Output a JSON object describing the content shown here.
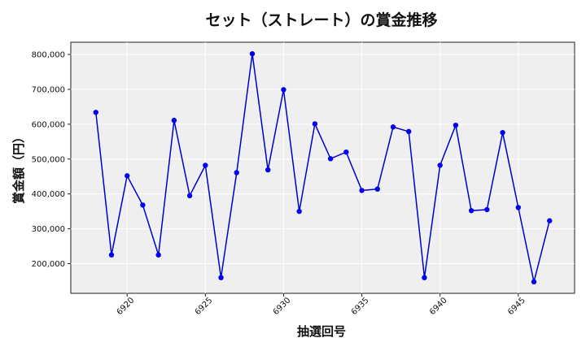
{
  "chart_data": {
    "type": "line",
    "title": "セット（ストレート）の賞金推移",
    "xlabel": "抽選回号",
    "ylabel": "賞金額（円）",
    "xlim": [
      6916.4,
      6948.6
    ],
    "ylim": [
      115000,
      835000
    ],
    "x_ticks": [
      6920,
      6925,
      6930,
      6935,
      6940,
      6945
    ],
    "y_ticks": [
      200000,
      300000,
      400000,
      500000,
      600000,
      700000,
      800000
    ],
    "y_tick_labels": [
      "200,000",
      "300,000",
      "400,000",
      "500,000",
      "600,000",
      "700,000",
      "800,000"
    ],
    "grid": true,
    "line_color": "#0000cc",
    "marker_color": "#0000ee",
    "plot_background": "#efefef",
    "series": [
      {
        "x": [
          6918,
          6919,
          6920,
          6921,
          6922,
          6923,
          6924,
          6925,
          6926,
          6927,
          6928,
          6929,
          6930,
          6931,
          6932,
          6933,
          6934,
          6935,
          6936,
          6937,
          6938,
          6939,
          6940,
          6941,
          6942,
          6943,
          6944,
          6945,
          6946,
          6947
        ],
        "values": [
          634000,
          225000,
          452000,
          368000,
          225000,
          611000,
          395000,
          482000,
          160000,
          461000,
          802000,
          469000,
          699000,
          350000,
          601000,
          501000,
          520000,
          410000,
          414000,
          592000,
          579000,
          160000,
          482000,
          597000,
          352000,
          355000,
          576000,
          361000,
          148000,
          323000
        ]
      }
    ]
  }
}
